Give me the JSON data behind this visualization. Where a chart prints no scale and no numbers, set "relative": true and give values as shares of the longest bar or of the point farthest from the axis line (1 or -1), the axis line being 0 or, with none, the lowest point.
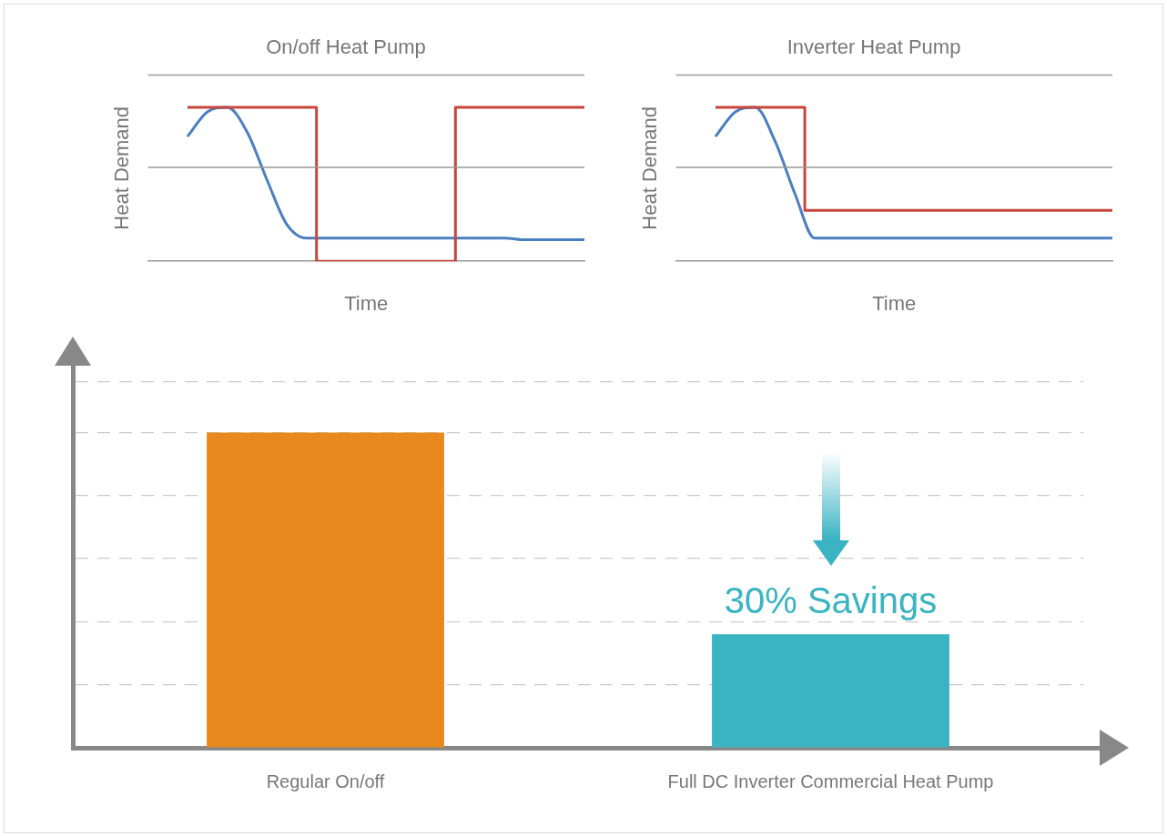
{
  "chart_data": [
    {
      "type": "line",
      "title": "On/off Heat Pump",
      "xlabel": "Time",
      "ylabel": "Heat Demand",
      "relative": true,
      "legend": false,
      "ref_lines": [
        {
          "axis": "y",
          "value": 0.61
        },
        {
          "axis": "y",
          "value": 1.21
        }
      ],
      "categories": [
        null,
        null,
        null,
        null,
        null,
        null,
        null,
        null,
        null,
        null,
        null,
        null,
        null,
        null,
        null,
        null,
        null,
        null,
        null,
        null,
        null,
        null,
        null
      ],
      "series": [
        {
          "type": "step",
          "color": "#c8453c",
          "values": [
            null,
            null,
            1,
            1,
            1,
            1,
            1,
            1,
            1,
            0,
            0,
            0,
            0,
            0,
            0,
            0,
            1,
            1,
            1,
            1,
            1,
            1,
            1
          ]
        },
        {
          "type": "line",
          "color": "#4a7fc0",
          "values": [
            null,
            null,
            0.81,
            0.97,
            1,
            0.84,
            0.53,
            0.24,
            0.15,
            0.15,
            0.15,
            0.15,
            0.15,
            0.15,
            0.15,
            0.15,
            0.15,
            0.15,
            0.15,
            0.14,
            0.14,
            0.14,
            0.14
          ]
        }
      ]
    },
    {
      "type": "line",
      "title": "Inverter Heat Pump",
      "xlabel": "Time",
      "ylabel": "Heat Demand",
      "relative": true,
      "legend": false,
      "ref_lines": [
        {
          "axis": "y",
          "value": 0.61
        },
        {
          "axis": "y",
          "value": 1.21
        }
      ],
      "categories": [
        null,
        null,
        null,
        null,
        null,
        null,
        null,
        null,
        null,
        null,
        null,
        null,
        null,
        null,
        null,
        null,
        null,
        null,
        null,
        null,
        null,
        null,
        null
      ],
      "series": [
        {
          "type": "step",
          "color": "#c8453c",
          "values": [
            null,
            null,
            1,
            1,
            1,
            1,
            1,
            0.33,
            0.33,
            0.33,
            0.33,
            0.33,
            0.33,
            0.33,
            0.33,
            0.33,
            0.33,
            0.33,
            0.33,
            0.33,
            0.33,
            0.33,
            0.33
          ]
        },
        {
          "type": "line",
          "color": "#4a7fc0",
          "values": [
            null,
            null,
            0.81,
            0.97,
            1,
            0.78,
            0.44,
            0.15,
            0.15,
            0.15,
            0.15,
            0.15,
            0.15,
            0.15,
            0.15,
            0.15,
            0.15,
            0.15,
            0.15,
            0.15,
            0.15,
            0.15,
            0.15
          ]
        }
      ]
    },
    {
      "type": "bar",
      "relative": true,
      "grid": "y",
      "legend": false,
      "tick_labels": "x",
      "categories": [
        "Regular On/off",
        "Full DC Inverter Commercial Heat Pump"
      ],
      "values": [
        1,
        0.36
      ],
      "colors": [
        "#e8891e",
        "#3ab3c3"
      ],
      "annotations": [
        "30% Savings"
      ]
    }
  ]
}
